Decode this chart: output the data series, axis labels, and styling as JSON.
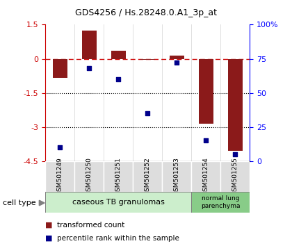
{
  "title": "GDS4256 / Hs.28248.0.A1_3p_at",
  "samples": [
    "GSM501249",
    "GSM501250",
    "GSM501251",
    "GSM501252",
    "GSM501253",
    "GSM501254",
    "GSM501255"
  ],
  "transformed_count": [
    -0.85,
    1.25,
    0.35,
    -0.05,
    0.13,
    -2.85,
    -4.05
  ],
  "percentile_rank": [
    10,
    68,
    60,
    35,
    72,
    15,
    5
  ],
  "ylim_left": [
    -4.5,
    1.5
  ],
  "ylim_right": [
    0,
    100
  ],
  "bar_color": "#8B1A1A",
  "dot_color": "#00008B",
  "hline_color": "#CC0000",
  "dotted_line_color": "#000000",
  "group1_label": "caseous TB granulomas",
  "group1_n": 5,
  "group1_color": "#CCEECC",
  "group2_label": "normal lung\nparenchyma",
  "group2_n": 2,
  "group2_color": "#88CC88",
  "legend_red_label": "transformed count",
  "legend_blue_label": "percentile rank within the sample",
  "cell_type_label": "cell type",
  "bar_width": 0.5
}
